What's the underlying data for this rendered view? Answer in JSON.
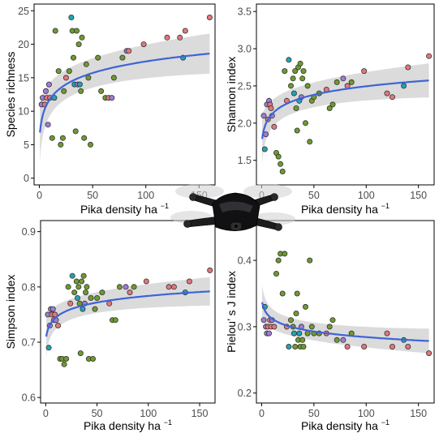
{
  "colors": {
    "fit_line": "#3d64d8",
    "ci_band": "#bdbdbd",
    "point_palette": [
      "#e0777d",
      "#6f9a2e",
      "#22a3b5",
      "#a07cd6"
    ]
  },
  "overlay": {
    "image": "drone-photo"
  },
  "chart_data": [
    {
      "type": "scatter",
      "xlabel": "Pika density ha",
      "xlabel_sup": "−1",
      "ylabel": "Species richness",
      "xlim": [
        -5,
        165
      ],
      "ylim": [
        -1,
        26
      ],
      "xticks": [
        0,
        50,
        100,
        150
      ],
      "yticks": [
        0,
        5,
        10,
        15,
        20,
        25
      ],
      "fit": {
        "model": "log",
        "a": 5.8,
        "b": 2.52,
        "ci": 2.1
      },
      "points": [
        {
          "x": 2,
          "y": 11,
          "g": 3
        },
        {
          "x": 3,
          "y": 12,
          "g": 3
        },
        {
          "x": 5,
          "y": 11,
          "g": 0
        },
        {
          "x": 6,
          "y": 13,
          "g": 3
        },
        {
          "x": 7,
          "y": 12,
          "g": 0
        },
        {
          "x": 8,
          "y": 8,
          "g": 3
        },
        {
          "x": 9,
          "y": 14,
          "g": 3
        },
        {
          "x": 10,
          "y": 12,
          "g": 0
        },
        {
          "x": 12,
          "y": 6,
          "g": 1
        },
        {
          "x": 14,
          "y": 12,
          "g": 2
        },
        {
          "x": 15,
          "y": 22,
          "g": 1
        },
        {
          "x": 18,
          "y": 16,
          "g": 1
        },
        {
          "x": 20,
          "y": 5,
          "g": 1
        },
        {
          "x": 22,
          "y": 6,
          "g": 1
        },
        {
          "x": 23,
          "y": 13,
          "g": 1
        },
        {
          "x": 25,
          "y": 15,
          "g": 0
        },
        {
          "x": 28,
          "y": 16,
          "g": 1
        },
        {
          "x": 30,
          "y": 24,
          "g": 2
        },
        {
          "x": 31,
          "y": 22,
          "g": 1
        },
        {
          "x": 32,
          "y": 18,
          "g": 1
        },
        {
          "x": 33,
          "y": 14,
          "g": 2
        },
        {
          "x": 34,
          "y": 7,
          "g": 1
        },
        {
          "x": 35,
          "y": 22,
          "g": 1
        },
        {
          "x": 36,
          "y": 14,
          "g": 3
        },
        {
          "x": 37,
          "y": 20,
          "g": 1
        },
        {
          "x": 38,
          "y": 14,
          "g": 2
        },
        {
          "x": 39,
          "y": 13,
          "g": 1
        },
        {
          "x": 40,
          "y": 21,
          "g": 1
        },
        {
          "x": 42,
          "y": 6,
          "g": 1
        },
        {
          "x": 44,
          "y": 17,
          "g": 1
        },
        {
          "x": 46,
          "y": 15,
          "g": 1
        },
        {
          "x": 48,
          "y": 5,
          "g": 1
        },
        {
          "x": 55,
          "y": 18,
          "g": 1
        },
        {
          "x": 58,
          "y": 13,
          "g": 1
        },
        {
          "x": 62,
          "y": 12,
          "g": 1
        },
        {
          "x": 65,
          "y": 12,
          "g": 0
        },
        {
          "x": 68,
          "y": 12,
          "g": 3
        },
        {
          "x": 70,
          "y": 15,
          "g": 1
        },
        {
          "x": 78,
          "y": 18,
          "g": 1
        },
        {
          "x": 82,
          "y": 19,
          "g": 3
        },
        {
          "x": 84,
          "y": 19,
          "g": 0
        },
        {
          "x": 98,
          "y": 20,
          "g": 0
        },
        {
          "x": 120,
          "y": 21,
          "g": 0
        },
        {
          "x": 132,
          "y": 21,
          "g": 0
        },
        {
          "x": 137,
          "y": 22,
          "g": 0
        },
        {
          "x": 135,
          "y": 18,
          "g": 2
        },
        {
          "x": 160,
          "y": 24,
          "g": 0
        }
      ]
    },
    {
      "type": "scatter",
      "xlabel": "Pika density ha",
      "xlabel_sup": "−1",
      "ylabel": "Shannon index",
      "xlim": [
        -5,
        165
      ],
      "ylim": [
        1.17,
        3.6
      ],
      "xticks": [
        0,
        50,
        100,
        150
      ],
      "yticks": [
        1.5,
        2.0,
        2.5,
        3.0,
        3.5
      ],
      "fit": {
        "model": "log",
        "a": 1.72,
        "b": 0.168,
        "ci": 0.16
      },
      "points": [
        {
          "x": 2,
          "y": 2.1,
          "g": 3
        },
        {
          "x": 3,
          "y": 1.65,
          "g": 2
        },
        {
          "x": 4,
          "y": 1.85,
          "g": 3
        },
        {
          "x": 5,
          "y": 2.25,
          "g": 3
        },
        {
          "x": 6,
          "y": 2.05,
          "g": 0
        },
        {
          "x": 7,
          "y": 2.3,
          "g": 3
        },
        {
          "x": 8,
          "y": 2.25,
          "g": 0
        },
        {
          "x": 9,
          "y": 2.2,
          "g": 0
        },
        {
          "x": 10,
          "y": 2.1,
          "g": 3
        },
        {
          "x": 12,
          "y": 1.95,
          "g": 0
        },
        {
          "x": 14,
          "y": 1.6,
          "g": 1
        },
        {
          "x": 16,
          "y": 1.55,
          "g": 1
        },
        {
          "x": 18,
          "y": 1.45,
          "g": 1
        },
        {
          "x": 20,
          "y": 1.35,
          "g": 1
        },
        {
          "x": 22,
          "y": 2.7,
          "g": 1
        },
        {
          "x": 24,
          "y": 2.3,
          "g": 0
        },
        {
          "x": 26,
          "y": 2.85,
          "g": 2
        },
        {
          "x": 28,
          "y": 2.5,
          "g": 1
        },
        {
          "x": 30,
          "y": 2.6,
          "g": 1
        },
        {
          "x": 31,
          "y": 2.4,
          "g": 2
        },
        {
          "x": 32,
          "y": 2.7,
          "g": 1
        },
        {
          "x": 33,
          "y": 2.2,
          "g": 1
        },
        {
          "x": 34,
          "y": 1.9,
          "g": 1
        },
        {
          "x": 35,
          "y": 2.75,
          "g": 1
        },
        {
          "x": 36,
          "y": 2.3,
          "g": 2
        },
        {
          "x": 37,
          "y": 2.8,
          "g": 1
        },
        {
          "x": 38,
          "y": 2.35,
          "g": 3
        },
        {
          "x": 39,
          "y": 2.6,
          "g": 1
        },
        {
          "x": 40,
          "y": 2.7,
          "g": 1
        },
        {
          "x": 42,
          "y": 2.0,
          "g": 1
        },
        {
          "x": 44,
          "y": 2.5,
          "g": 1
        },
        {
          "x": 46,
          "y": 1.75,
          "g": 1
        },
        {
          "x": 48,
          "y": 2.3,
          "g": 1
        },
        {
          "x": 50,
          "y": 2.35,
          "g": 1
        },
        {
          "x": 55,
          "y": 2.4,
          "g": 1
        },
        {
          "x": 62,
          "y": 2.45,
          "g": 0
        },
        {
          "x": 65,
          "y": 2.2,
          "g": 1
        },
        {
          "x": 68,
          "y": 2.25,
          "g": 1
        },
        {
          "x": 72,
          "y": 2.55,
          "g": 1
        },
        {
          "x": 78,
          "y": 2.6,
          "g": 3
        },
        {
          "x": 82,
          "y": 2.5,
          "g": 0
        },
        {
          "x": 86,
          "y": 2.55,
          "g": 1
        },
        {
          "x": 98,
          "y": 2.7,
          "g": 0
        },
        {
          "x": 120,
          "y": 2.4,
          "g": 0
        },
        {
          "x": 125,
          "y": 2.35,
          "g": 0
        },
        {
          "x": 136,
          "y": 2.5,
          "g": 2
        },
        {
          "x": 140,
          "y": 2.75,
          "g": 0
        },
        {
          "x": 160,
          "y": 2.9,
          "g": 0
        }
      ]
    },
    {
      "type": "scatter",
      "xlabel": "Pika density ha",
      "xlabel_sup": "−1",
      "ylabel": "Simpson index",
      "xlim": [
        -5,
        165
      ],
      "ylim": [
        0.59,
        0.92
      ],
      "xticks": [
        0,
        50,
        100,
        150
      ],
      "yticks": [
        0.6,
        0.7,
        0.8,
        0.9
      ],
      "fit": {
        "model": "log",
        "a": 0.703,
        "b": 0.0175,
        "ci": 0.018
      },
      "points": [
        {
          "x": 2,
          "y": 0.75,
          "g": 3
        },
        {
          "x": 3,
          "y": 0.69,
          "g": 2
        },
        {
          "x": 4,
          "y": 0.73,
          "g": 3
        },
        {
          "x": 5,
          "y": 0.76,
          "g": 3
        },
        {
          "x": 6,
          "y": 0.75,
          "g": 0
        },
        {
          "x": 7,
          "y": 0.76,
          "g": 3
        },
        {
          "x": 8,
          "y": 0.74,
          "g": 0
        },
        {
          "x": 9,
          "y": 0.75,
          "g": 0
        },
        {
          "x": 10,
          "y": 0.74,
          "g": 3
        },
        {
          "x": 12,
          "y": 0.73,
          "g": 0
        },
        {
          "x": 14,
          "y": 0.67,
          "g": 1
        },
        {
          "x": 16,
          "y": 0.67,
          "g": 1
        },
        {
          "x": 18,
          "y": 0.66,
          "g": 1
        },
        {
          "x": 20,
          "y": 0.67,
          "g": 1
        },
        {
          "x": 22,
          "y": 0.8,
          "g": 1
        },
        {
          "x": 24,
          "y": 0.77,
          "g": 0
        },
        {
          "x": 26,
          "y": 0.82,
          "g": 2
        },
        {
          "x": 28,
          "y": 0.79,
          "g": 1
        },
        {
          "x": 30,
          "y": 0.81,
          "g": 1
        },
        {
          "x": 31,
          "y": 0.78,
          "g": 2
        },
        {
          "x": 32,
          "y": 0.8,
          "g": 1
        },
        {
          "x": 33,
          "y": 0.77,
          "g": 1
        },
        {
          "x": 34,
          "y": 0.68,
          "g": 1
        },
        {
          "x": 35,
          "y": 0.81,
          "g": 1
        },
        {
          "x": 36,
          "y": 0.76,
          "g": 2
        },
        {
          "x": 37,
          "y": 0.82,
          "g": 1
        },
        {
          "x": 38,
          "y": 0.77,
          "g": 3
        },
        {
          "x": 39,
          "y": 0.79,
          "g": 1
        },
        {
          "x": 40,
          "y": 0.8,
          "g": 1
        },
        {
          "x": 42,
          "y": 0.67,
          "g": 1
        },
        {
          "x": 44,
          "y": 0.78,
          "g": 1
        },
        {
          "x": 46,
          "y": 0.67,
          "g": 1
        },
        {
          "x": 48,
          "y": 0.76,
          "g": 1
        },
        {
          "x": 50,
          "y": 0.78,
          "g": 1
        },
        {
          "x": 55,
          "y": 0.79,
          "g": 1
        },
        {
          "x": 62,
          "y": 0.77,
          "g": 0
        },
        {
          "x": 65,
          "y": 0.74,
          "g": 1
        },
        {
          "x": 68,
          "y": 0.74,
          "g": 1
        },
        {
          "x": 72,
          "y": 0.8,
          "g": 1
        },
        {
          "x": 78,
          "y": 0.8,
          "g": 3
        },
        {
          "x": 82,
          "y": 0.79,
          "g": 0
        },
        {
          "x": 86,
          "y": 0.8,
          "g": 1
        },
        {
          "x": 98,
          "y": 0.81,
          "g": 0
        },
        {
          "x": 120,
          "y": 0.8,
          "g": 0
        },
        {
          "x": 125,
          "y": 0.8,
          "g": 0
        },
        {
          "x": 136,
          "y": 0.79,
          "g": 2
        },
        {
          "x": 140,
          "y": 0.81,
          "g": 0
        },
        {
          "x": 160,
          "y": 0.83,
          "g": 0
        }
      ]
    },
    {
      "type": "scatter",
      "xlabel": "Pika density ha",
      "xlabel_sup": "−1",
      "ylabel": "Pielou’ s J index",
      "xlim": [
        -5,
        165
      ],
      "ylim": [
        0.185,
        0.46
      ],
      "xticks": [
        0,
        50,
        100,
        150
      ],
      "yticks": [
        0.2,
        0.3,
        0.4
      ],
      "fit": {
        "model": "log",
        "a": 0.342,
        "b": -0.0125,
        "ci": 0.013
      },
      "points": [
        {
          "x": 2,
          "y": 0.31,
          "g": 3
        },
        {
          "x": 3,
          "y": 0.33,
          "g": 2
        },
        {
          "x": 4,
          "y": 0.3,
          "g": 3
        },
        {
          "x": 5,
          "y": 0.29,
          "g": 3
        },
        {
          "x": 6,
          "y": 0.3,
          "g": 0
        },
        {
          "x": 7,
          "y": 0.29,
          "g": 3
        },
        {
          "x": 8,
          "y": 0.31,
          "g": 0
        },
        {
          "x": 9,
          "y": 0.3,
          "g": 0
        },
        {
          "x": 10,
          "y": 0.31,
          "g": 3
        },
        {
          "x": 12,
          "y": 0.3,
          "g": 0
        },
        {
          "x": 14,
          "y": 0.38,
          "g": 1
        },
        {
          "x": 16,
          "y": 0.4,
          "g": 1
        },
        {
          "x": 18,
          "y": 0.41,
          "g": 1
        },
        {
          "x": 20,
          "y": 0.35,
          "g": 1
        },
        {
          "x": 22,
          "y": 0.41,
          "g": 1
        },
        {
          "x": 24,
          "y": 0.3,
          "g": 0
        },
        {
          "x": 26,
          "y": 0.27,
          "g": 2
        },
        {
          "x": 28,
          "y": 0.31,
          "g": 1
        },
        {
          "x": 30,
          "y": 0.3,
          "g": 1
        },
        {
          "x": 31,
          "y": 0.29,
          "g": 2
        },
        {
          "x": 32,
          "y": 0.27,
          "g": 1
        },
        {
          "x": 33,
          "y": 0.32,
          "g": 1
        },
        {
          "x": 34,
          "y": 0.35,
          "g": 1
        },
        {
          "x": 35,
          "y": 0.28,
          "g": 1
        },
        {
          "x": 36,
          "y": 0.29,
          "g": 2
        },
        {
          "x": 37,
          "y": 0.27,
          "g": 1
        },
        {
          "x": 38,
          "y": 0.3,
          "g": 3
        },
        {
          "x": 39,
          "y": 0.28,
          "g": 1
        },
        {
          "x": 40,
          "y": 0.27,
          "g": 1
        },
        {
          "x": 42,
          "y": 0.33,
          "g": 1
        },
        {
          "x": 44,
          "y": 0.29,
          "g": 1
        },
        {
          "x": 46,
          "y": 0.4,
          "g": 1
        },
        {
          "x": 48,
          "y": 0.3,
          "g": 1
        },
        {
          "x": 50,
          "y": 0.29,
          "g": 1
        },
        {
          "x": 55,
          "y": 0.29,
          "g": 1
        },
        {
          "x": 62,
          "y": 0.29,
          "g": 0
        },
        {
          "x": 65,
          "y": 0.3,
          "g": 1
        },
        {
          "x": 68,
          "y": 0.31,
          "g": 1
        },
        {
          "x": 72,
          "y": 0.28,
          "g": 1
        },
        {
          "x": 78,
          "y": 0.28,
          "g": 3
        },
        {
          "x": 82,
          "y": 0.27,
          "g": 0
        },
        {
          "x": 86,
          "y": 0.29,
          "g": 1
        },
        {
          "x": 98,
          "y": 0.27,
          "g": 0
        },
        {
          "x": 120,
          "y": 0.29,
          "g": 0
        },
        {
          "x": 125,
          "y": 0.27,
          "g": 0
        },
        {
          "x": 136,
          "y": 0.28,
          "g": 2
        },
        {
          "x": 140,
          "y": 0.27,
          "g": 0
        },
        {
          "x": 160,
          "y": 0.26,
          "g": 0
        }
      ]
    }
  ]
}
